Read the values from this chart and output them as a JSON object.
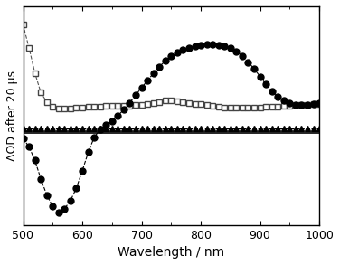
{
  "title": "",
  "xlabel": "Wavelength / nm",
  "ylabel": "ΔOD after 20 µs",
  "xlim": [
    500,
    1000
  ],
  "ylim": [
    -0.4,
    0.55
  ],
  "zero_line_y": 0.0,
  "background_color": "#ffffff",
  "triangle_series": {
    "x": [
      500,
      510,
      520,
      530,
      540,
      550,
      560,
      570,
      580,
      590,
      600,
      610,
      620,
      630,
      640,
      650,
      660,
      670,
      680,
      690,
      700,
      710,
      720,
      730,
      740,
      750,
      760,
      770,
      780,
      790,
      800,
      810,
      820,
      830,
      840,
      850,
      860,
      870,
      880,
      890,
      900,
      910,
      920,
      930,
      940,
      950,
      960,
      970,
      980,
      990,
      1000
    ],
    "y": [
      0.02,
      0.02,
      0.02,
      0.02,
      0.02,
      0.02,
      0.02,
      0.02,
      0.02,
      0.02,
      0.02,
      0.02,
      0.02,
      0.02,
      0.02,
      0.02,
      0.02,
      0.02,
      0.02,
      0.02,
      0.02,
      0.02,
      0.02,
      0.02,
      0.02,
      0.02,
      0.02,
      0.02,
      0.02,
      0.02,
      0.02,
      0.02,
      0.02,
      0.02,
      0.02,
      0.02,
      0.02,
      0.02,
      0.02,
      0.02,
      0.02,
      0.02,
      0.02,
      0.02,
      0.02,
      0.02,
      0.02,
      0.02,
      0.02,
      0.02,
      0.02
    ],
    "color": "#000000",
    "marker": "^",
    "markersize": 5,
    "linestyle": "--",
    "linewidth": 0.8,
    "markerfacecolor": "#000000",
    "markeredgecolor": "#000000"
  },
  "square_series": {
    "x": [
      500,
      510,
      520,
      530,
      540,
      550,
      560,
      570,
      580,
      590,
      600,
      610,
      620,
      630,
      640,
      650,
      660,
      670,
      680,
      690,
      700,
      710,
      720,
      730,
      740,
      750,
      760,
      770,
      780,
      790,
      800,
      810,
      820,
      830,
      840,
      850,
      860,
      870,
      880,
      890,
      900,
      910,
      920,
      930,
      940,
      950,
      960,
      970,
      980,
      990,
      1000
    ],
    "y": [
      0.47,
      0.37,
      0.26,
      0.175,
      0.135,
      0.115,
      0.105,
      0.105,
      0.105,
      0.108,
      0.11,
      0.112,
      0.114,
      0.115,
      0.116,
      0.116,
      0.116,
      0.117,
      0.118,
      0.12,
      0.122,
      0.124,
      0.13,
      0.135,
      0.14,
      0.14,
      0.138,
      0.133,
      0.13,
      0.127,
      0.124,
      0.12,
      0.116,
      0.113,
      0.111,
      0.11,
      0.11,
      0.11,
      0.11,
      0.111,
      0.111,
      0.112,
      0.113,
      0.115,
      0.117,
      0.118,
      0.12,
      0.122,
      0.123,
      0.124,
      0.125
    ],
    "color": "#555555",
    "marker": "s",
    "markersize": 5,
    "linestyle": "--",
    "linewidth": 0.8,
    "markerfacecolor": "#ffffff",
    "markeredgecolor": "#444444"
  },
  "circle_series": {
    "x": [
      500,
      510,
      520,
      530,
      540,
      550,
      560,
      570,
      580,
      590,
      600,
      610,
      620,
      630,
      640,
      650,
      660,
      670,
      680,
      690,
      700,
      710,
      720,
      730,
      740,
      750,
      760,
      770,
      780,
      790,
      800,
      810,
      820,
      830,
      840,
      850,
      860,
      870,
      880,
      890,
      900,
      910,
      920,
      930,
      940,
      950,
      960,
      970,
      980,
      990,
      1000
    ],
    "y": [
      -0.025,
      -0.06,
      -0.12,
      -0.2,
      -0.27,
      -0.32,
      -0.345,
      -0.33,
      -0.295,
      -0.24,
      -0.165,
      -0.085,
      -0.02,
      0.015,
      0.034,
      0.05,
      0.075,
      0.1,
      0.13,
      0.165,
      0.195,
      0.228,
      0.258,
      0.288,
      0.312,
      0.332,
      0.348,
      0.36,
      0.37,
      0.376,
      0.382,
      0.385,
      0.385,
      0.382,
      0.378,
      0.37,
      0.355,
      0.335,
      0.308,
      0.278,
      0.245,
      0.21,
      0.182,
      0.158,
      0.14,
      0.128,
      0.122,
      0.12,
      0.122,
      0.124,
      0.128
    ],
    "color": "#000000",
    "marker": "o",
    "markersize": 5,
    "linestyle": "--",
    "linewidth": 0.8,
    "markerfacecolor": "#000000",
    "markeredgecolor": "#000000"
  }
}
